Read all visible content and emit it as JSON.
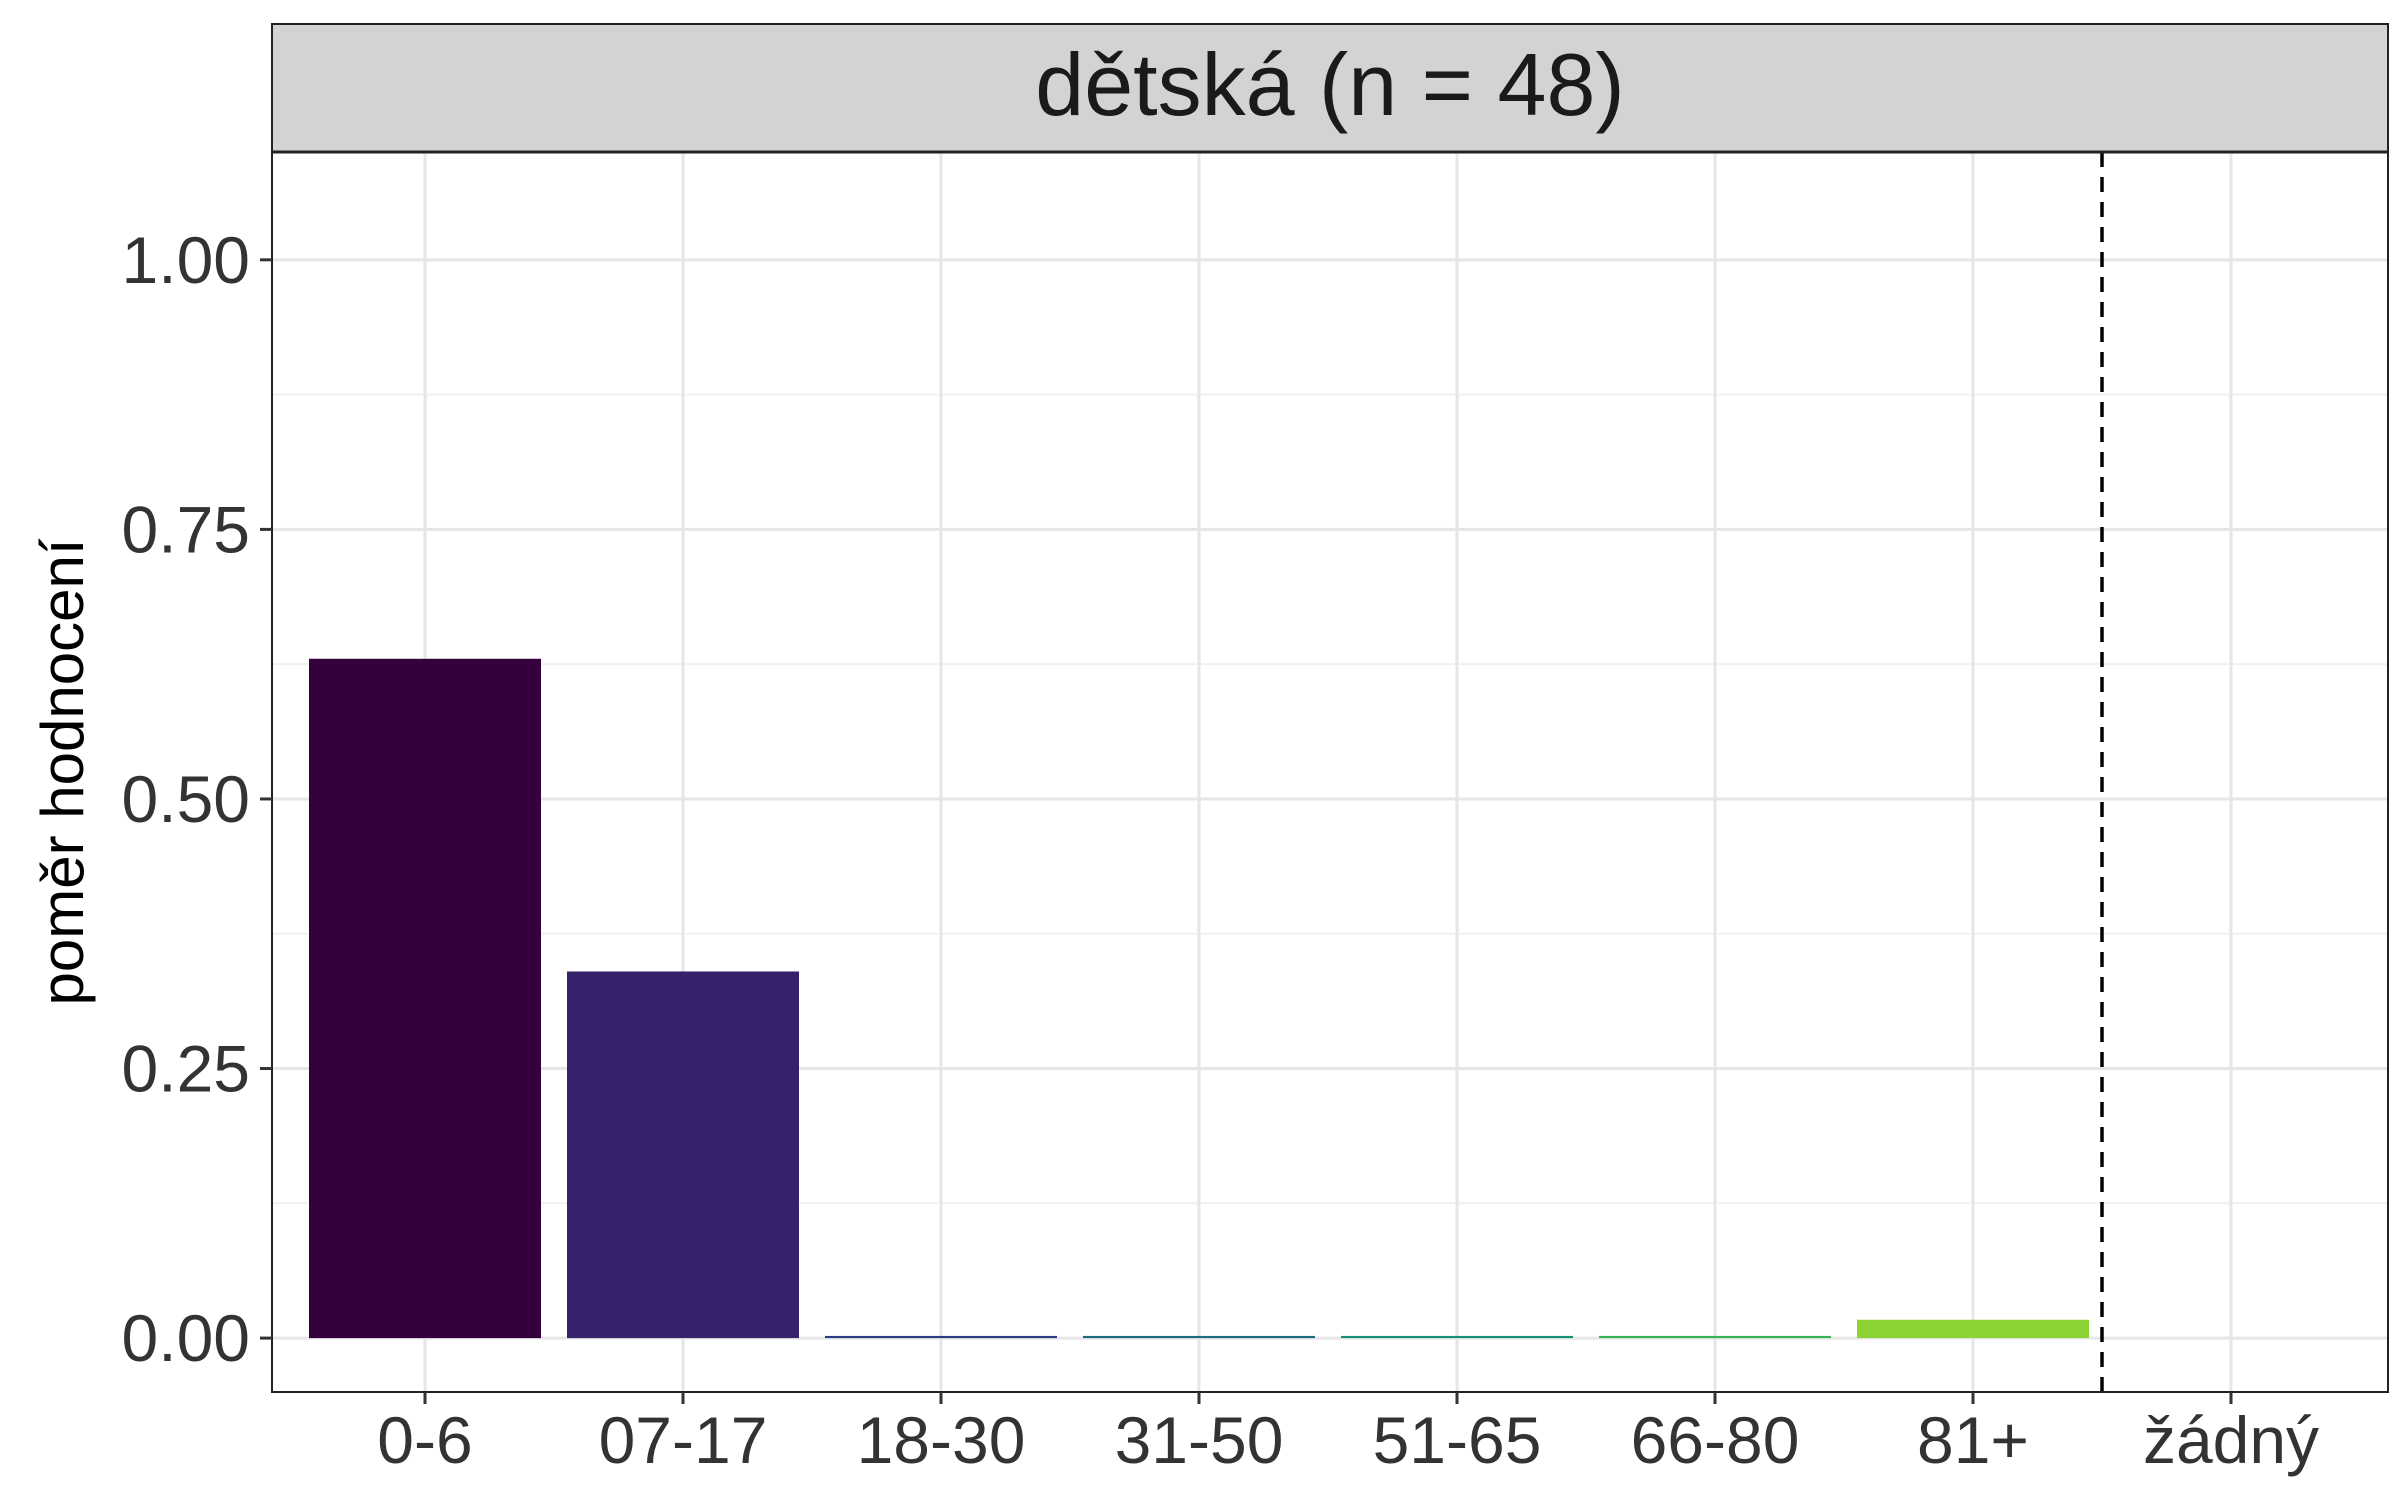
{
  "chart_data": {
    "type": "bar",
    "panel_title": "dětská (n = 48)",
    "ylabel": "poměr hodnocení",
    "xlabel": "",
    "categories": [
      "0-6",
      "07-17",
      "18-30",
      "31-50",
      "51-65",
      "66-80",
      "81+",
      "žádný"
    ],
    "values": [
      0.63,
      0.34,
      0.002,
      0.002,
      0.002,
      0.002,
      0.017,
      0
    ],
    "colors": [
      "#35013d",
      "#35226a",
      "#2b3d80",
      "#1f6b7c",
      "#179175",
      "#36b458",
      "#8bd234",
      "#c6e224"
    ],
    "ylim": [
      -0.05,
      1.1
    ],
    "yticks": [
      0.0,
      0.25,
      0.5,
      0.75,
      1.0
    ],
    "ytick_labels": [
      "0.00",
      "0.25",
      "0.50",
      "0.75",
      "1.00"
    ],
    "reference_line": {
      "after_category": "81+",
      "style": "dashed"
    },
    "grid": true,
    "legend": "none",
    "colors_theme": {
      "strip_fill": "#d3d3d3",
      "panel_border": "#222222",
      "grid_major": "#e6e6e6",
      "grid_minor": "#f0f0f0",
      "text": "#333333"
    }
  }
}
